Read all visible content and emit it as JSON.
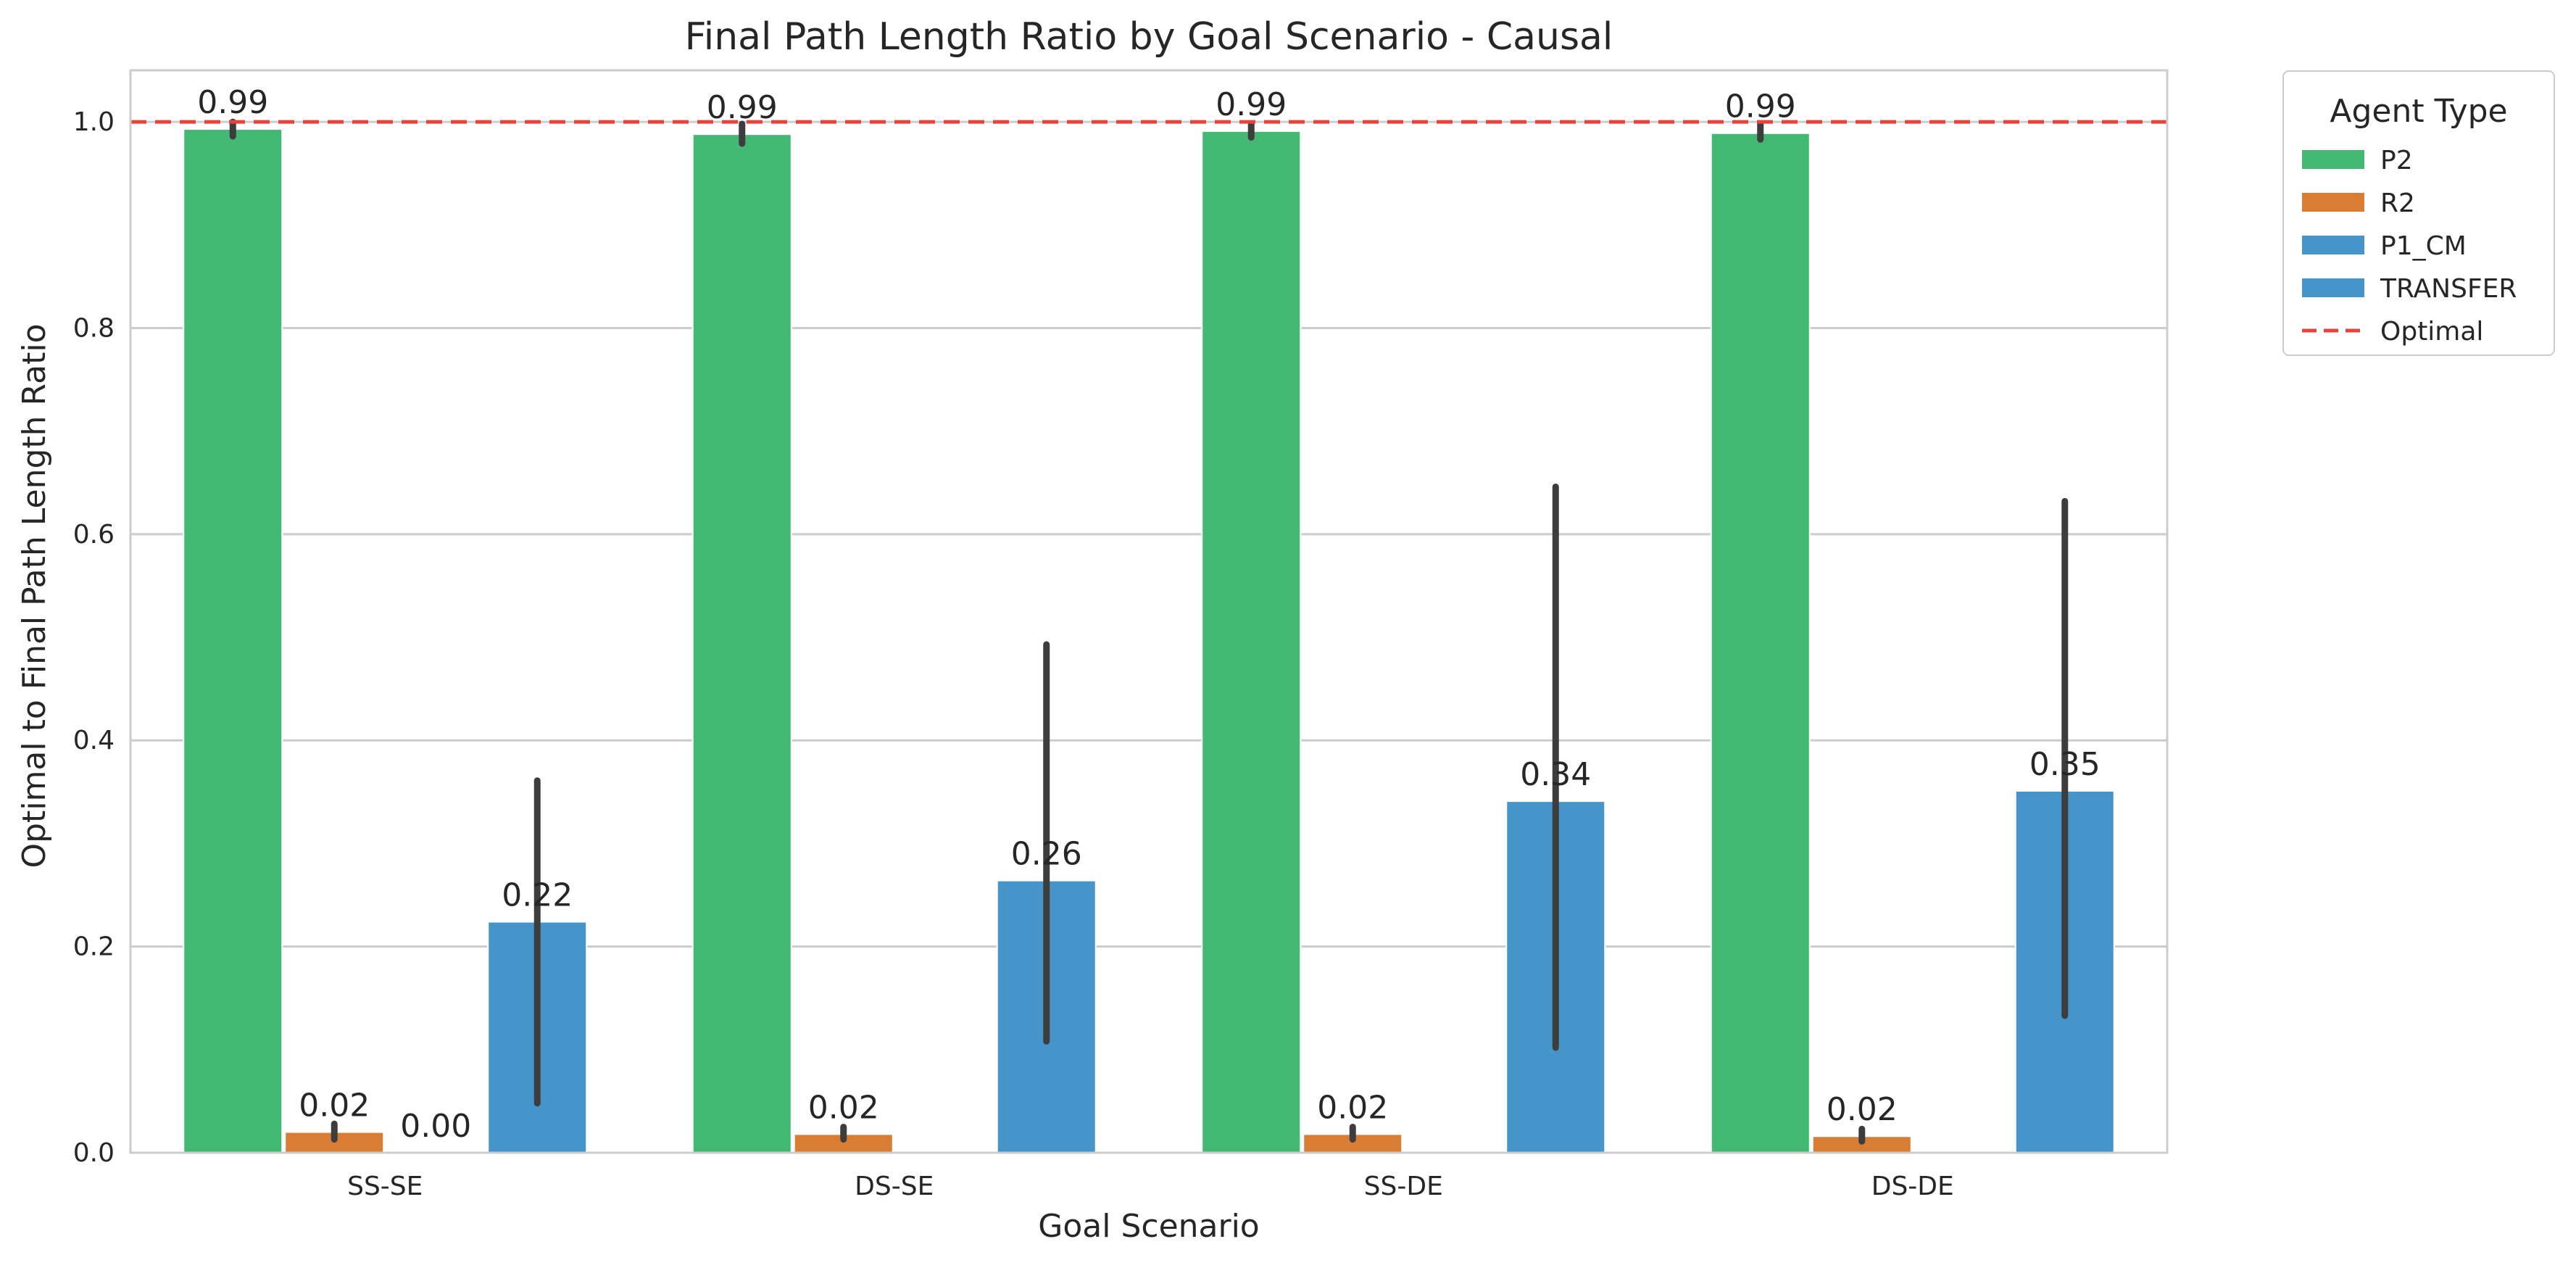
{
  "chart_data": {
    "type": "bar",
    "title": "Final Path Length Ratio by Goal Scenario - Causal",
    "xlabel": "Goal Scenario",
    "ylabel": "Optimal to Final Path Length Ratio",
    "ylim": [
      0,
      1.05
    ],
    "yticks": [
      "0.0",
      "0.2",
      "0.4",
      "0.6",
      "0.8",
      "1.0"
    ],
    "categories": [
      "SS-SE",
      "DS-SE",
      "SS-DE",
      "DS-DE"
    ],
    "grid": "horizontal",
    "legend_position": "outside-top-right",
    "legend_title": "Agent Type",
    "series": [
      {
        "name": "P2",
        "color": "#42b872",
        "values": [
          0.993,
          0.988,
          0.991,
          0.989
        ],
        "labels": [
          "0.99",
          "0.99",
          "0.99",
          "0.99"
        ],
        "error_low": [
          0.986,
          0.979,
          0.985,
          0.983
        ],
        "error_high": [
          1.0,
          0.998,
          0.998,
          0.998
        ]
      },
      {
        "name": "R2",
        "color": "#d97d34",
        "values": [
          0.02,
          0.018,
          0.018,
          0.016
        ],
        "labels": [
          "0.02",
          "0.02",
          "0.02",
          "0.02"
        ],
        "error_low": [
          0.013,
          0.013,
          0.013,
          0.011
        ],
        "error_high": [
          0.028,
          0.025,
          0.025,
          0.023
        ]
      },
      {
        "name": "P1_CM",
        "color": "#4695ca",
        "values": [
          0.0,
          null,
          null,
          null
        ],
        "labels": [
          "0.00",
          "",
          "",
          ""
        ],
        "error_low": [
          null,
          null,
          null,
          null
        ],
        "error_high": [
          null,
          null,
          null,
          null
        ]
      },
      {
        "name": "TRANSFER",
        "color": "#4695ca",
        "values": [
          0.224,
          0.264,
          0.341,
          0.351
        ],
        "labels": [
          "0.22",
          "0.26",
          "0.34",
          "0.35"
        ],
        "error_low": [
          0.048,
          0.108,
          0.102,
          0.133
        ],
        "error_high": [
          0.361,
          0.493,
          0.646,
          0.632
        ]
      }
    ],
    "reference_line": {
      "name": "Optimal",
      "y": 1.0,
      "color": "#e8433a",
      "style": "dashed"
    }
  }
}
